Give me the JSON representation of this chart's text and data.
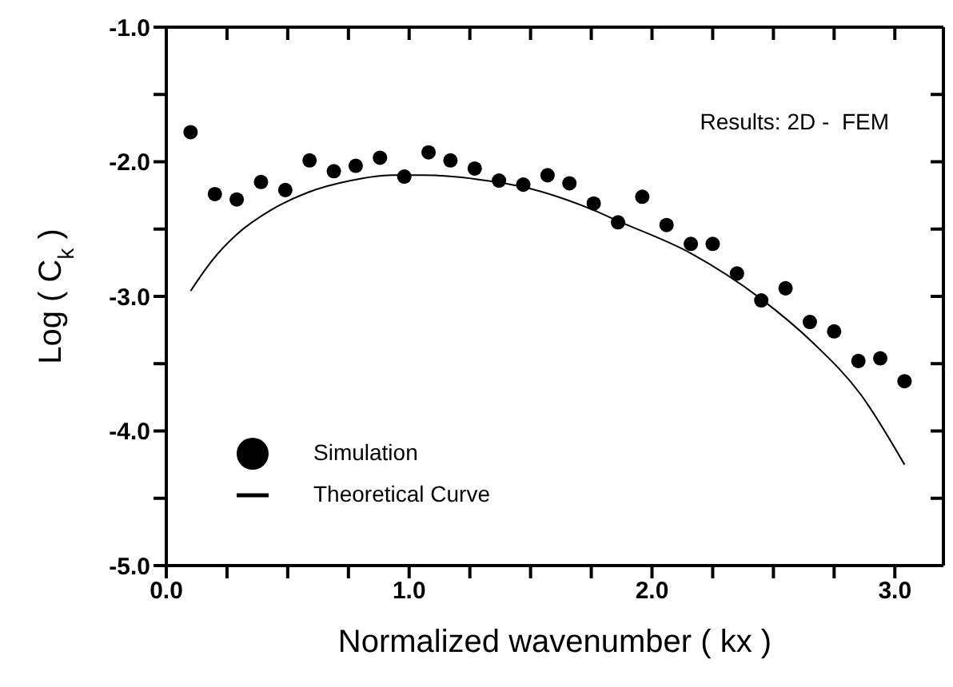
{
  "chart_data": {
    "type": "scatter",
    "xlabel": "Normalized wavenumber ( kx )",
    "ylabel": "Log ( C$_{k}$ )",
    "annotations": [
      "Results: 2D -  FEM"
    ],
    "xlim": [
      0,
      3.2
    ],
    "xticks": [
      {
        "value": 0,
        "label": "0.0"
      },
      {
        "value": 0.25,
        "label": null
      },
      {
        "value": 0.5,
        "label": null
      },
      {
        "value": 0.75,
        "label": null
      },
      {
        "value": 1,
        "label": "1.0"
      },
      {
        "value": 1.25,
        "label": null
      },
      {
        "value": 1.5,
        "label": null
      },
      {
        "value": 1.75,
        "label": null
      },
      {
        "value": 2,
        "label": "2.0"
      },
      {
        "value": 2.25,
        "label": null
      },
      {
        "value": 2.5,
        "label": null
      },
      {
        "value": 2.75,
        "label": null
      },
      {
        "value": 3,
        "label": "3.0"
      }
    ],
    "ylim": [
      -5,
      -1
    ],
    "yticks": [
      {
        "value": -5,
        "label": "-5.0"
      },
      {
        "value": -4.5,
        "label": null
      },
      {
        "value": -4,
        "label": "-4.0"
      },
      {
        "value": -3.5,
        "label": null
      },
      {
        "value": -3,
        "label": "-3.0"
      },
      {
        "value": -2.5,
        "label": null
      },
      {
        "value": -2,
        "label": "-2.0"
      },
      {
        "value": -1.5,
        "label": null
      },
      {
        "value": -1,
        "label": "-1.0"
      }
    ],
    "legend": "bottom left",
    "series": [
      {
        "name": "Simulation",
        "marker": "circle",
        "color": "#000000",
        "x": [
          0.1,
          0.2,
          0.29,
          0.39,
          0.49,
          0.59,
          0.69,
          0.78,
          0.88,
          0.98,
          1.08,
          1.17,
          1.27,
          1.37,
          1.47,
          1.57,
          1.66,
          1.76,
          1.86,
          1.96,
          2.06,
          2.16,
          2.25,
          2.35,
          2.45,
          2.55,
          2.65,
          2.75,
          2.85,
          2.94,
          3.04
        ],
        "values": [
          -1.78,
          -2.24,
          -2.28,
          -2.15,
          -2.21,
          -1.99,
          -2.07,
          -2.03,
          -1.97,
          -2.11,
          -1.93,
          -1.99,
          -2.05,
          -2.14,
          -2.17,
          -2.1,
          -2.16,
          -2.31,
          -2.45,
          -2.26,
          -2.47,
          -2.61,
          -2.61,
          -2.83,
          -3.03,
          -2.94,
          -3.19,
          -3.26,
          -3.48,
          -3.46,
          -3.63
        ]
      },
      {
        "name": "Theoretical Curve",
        "type": "line",
        "marker": "none",
        "line_style": "solid",
        "color": "#000000",
        "x": [
          0.1,
          0.19,
          0.29,
          0.43,
          0.58,
          0.76,
          0.93,
          1.06,
          1.28,
          1.5,
          1.76,
          1.86,
          2.16,
          2.45,
          2.66,
          2.86,
          3.04
        ],
        "values": [
          -2.96,
          -2.73,
          -2.54,
          -2.36,
          -2.23,
          -2.14,
          -2.1,
          -2.1,
          -2.13,
          -2.2,
          -2.36,
          -2.44,
          -2.68,
          -3.02,
          -3.34,
          -3.73,
          -4.25
        ]
      }
    ]
  }
}
